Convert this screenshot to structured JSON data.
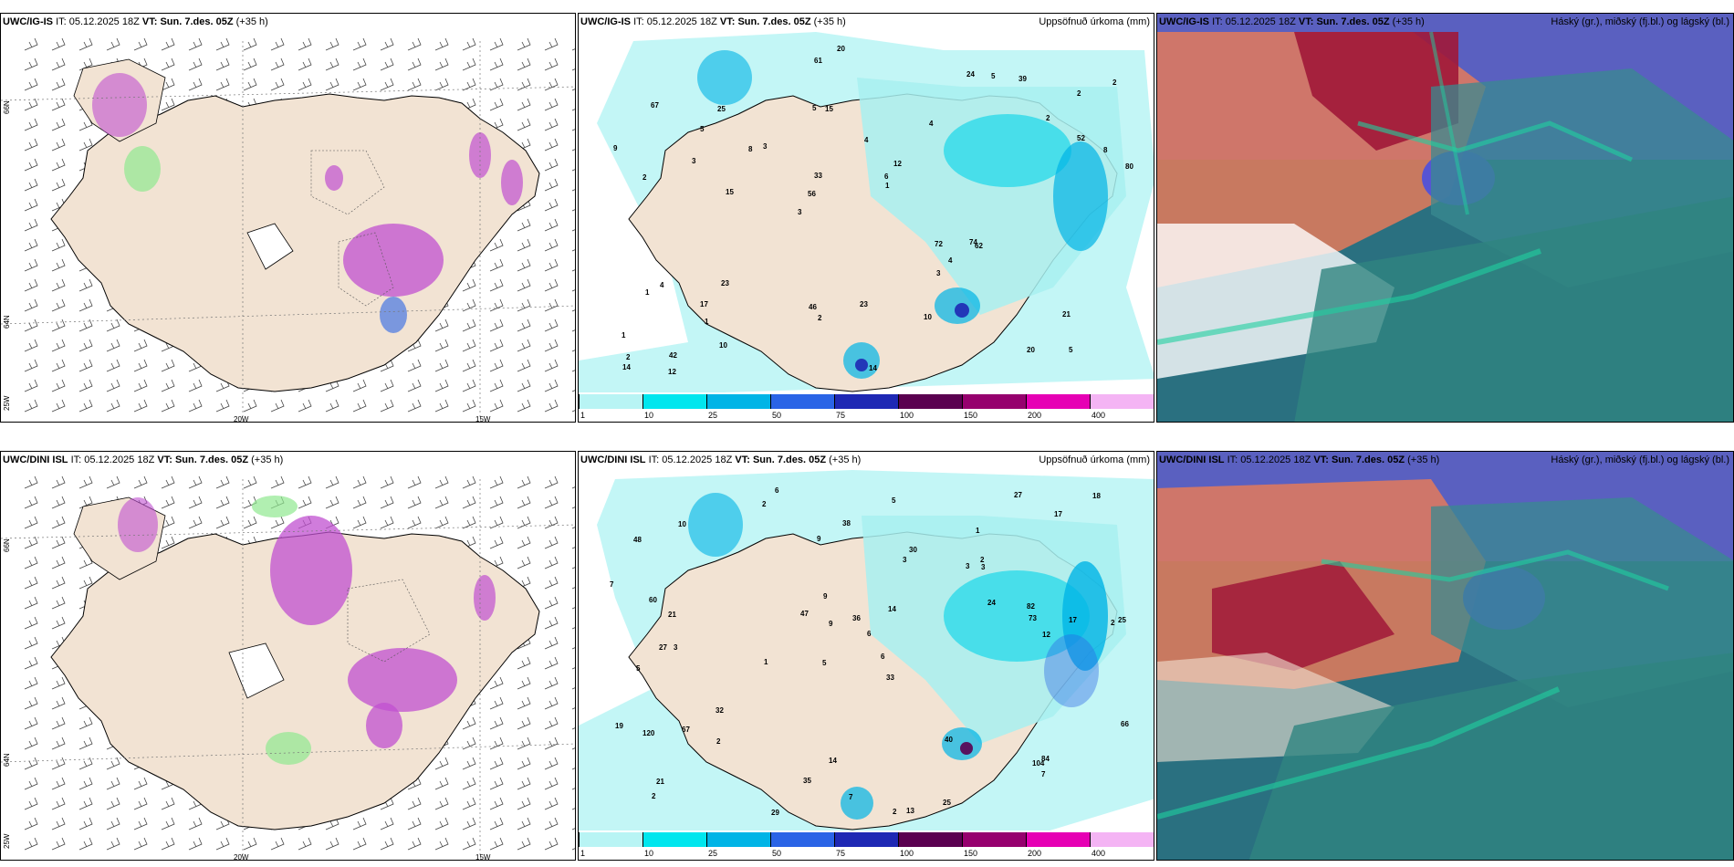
{
  "rows": [
    {
      "model": "UWC/IG-IS",
      "panels": [
        {
          "kind": "precip-type",
          "model": "UWC/IG-IS",
          "it_label": "IT:",
          "it": "05.12.2025 18Z",
          "vt_label": "VT:",
          "vt": "Sun. 7.des. 05Z",
          "lead": "(+35 h)",
          "right": ""
        },
        {
          "kind": "accum",
          "model": "UWC/IG-IS",
          "it_label": "IT:",
          "it": "05.12.2025 18Z",
          "vt_label": "VT:",
          "vt": "Sun. 7.des. 05Z",
          "lead": "(+35 h)",
          "right": "Uppsöfnuð úrkoma (mm)"
        },
        {
          "kind": "cloud",
          "model": "UWC/IG-IS",
          "it_label": "IT:",
          "it": "05.12.2025 18Z",
          "vt_label": "VT:",
          "vt": "Sun. 7.des. 05Z",
          "lead": "(+35 h)",
          "right": "Háský (gr.), miðský (fj.bl.) og lágský (bl.)"
        }
      ]
    },
    {
      "model": "UWC/DINI ISL",
      "panels": [
        {
          "kind": "precip-type",
          "model": "UWC/DINI ISL",
          "it_label": "IT:",
          "it": "05.12.2025 18Z",
          "vt_label": "VT:",
          "vt": "Sun. 7.des. 05Z",
          "lead": "(+35 h)",
          "right": ""
        },
        {
          "kind": "accum",
          "model": "UWC/DINI ISL",
          "it_label": "IT:",
          "it": "05.12.2025 18Z",
          "vt_label": "VT:",
          "vt": "Sun. 7.des. 05Z",
          "lead": "(+35 h)",
          "right": "Uppsöfnuð úrkoma (mm)"
        },
        {
          "kind": "cloud",
          "model": "UWC/DINI ISL",
          "it_label": "IT:",
          "it": "05.12.2025 18Z",
          "vt_label": "VT:",
          "vt": "Sun. 7.des. 05Z",
          "lead": "(+35 h)",
          "right": "Háský (gr.), miðský (fj.bl.) og lágský (bl.)"
        }
      ]
    }
  ],
  "axis_labels": {
    "lon_a": "20W",
    "lon_b": "15W",
    "lat_a": "66N",
    "lat_b": "64N",
    "lon_c": "25W"
  },
  "legend": {
    "labels": [
      "1",
      "10",
      "25",
      "50",
      "75",
      "100",
      "150",
      "200",
      "400"
    ],
    "colors": [
      "#b8f4f4",
      "#00e6ee",
      "#00b4e6",
      "#2a64e6",
      "#1e28b4",
      "#5a0050",
      "#96006e",
      "#e600b4",
      "#f4b4f4"
    ]
  },
  "colors": {
    "land": "#f2e3d3",
    "sea": "#ffffff",
    "precip_light": "#a8f0f0",
    "precip_mid": "#00d4ea",
    "snow": "#c050d0",
    "rain": "#90e890"
  },
  "accum_values_top": [
    "5",
    "2",
    "2",
    "3",
    "4",
    "42",
    "5",
    "4",
    "4",
    "3",
    "1",
    "1",
    "15",
    "12",
    "62",
    "67",
    "61",
    "80",
    "72",
    "52",
    "56",
    "46",
    "33",
    "25",
    "24",
    "23",
    "20",
    "21",
    "74",
    "14",
    "8",
    "3",
    "3",
    "10",
    "8",
    "6",
    "2",
    "2",
    "1",
    "1",
    "2",
    "2",
    "4",
    "10",
    "17",
    "12",
    "14",
    "23",
    "39",
    "20",
    "15",
    "9",
    "5",
    "5"
  ],
  "accum_values_bottom": [
    "6",
    "1",
    "2",
    "5",
    "33",
    "3",
    "48",
    "3",
    "5",
    "3",
    "6",
    "2",
    "2",
    "1",
    "2",
    "13",
    "14",
    "27",
    "24",
    "32",
    "21",
    "27",
    "25",
    "17",
    "19",
    "60",
    "9",
    "73",
    "84",
    "120",
    "104",
    "30",
    "67",
    "47",
    "40",
    "66",
    "82",
    "35",
    "18",
    "38",
    "21",
    "29",
    "25",
    "10",
    "7",
    "3",
    "7",
    "2",
    "7",
    "6",
    "9",
    "12",
    "14",
    "17",
    "5",
    "2",
    "9",
    "36"
  ]
}
